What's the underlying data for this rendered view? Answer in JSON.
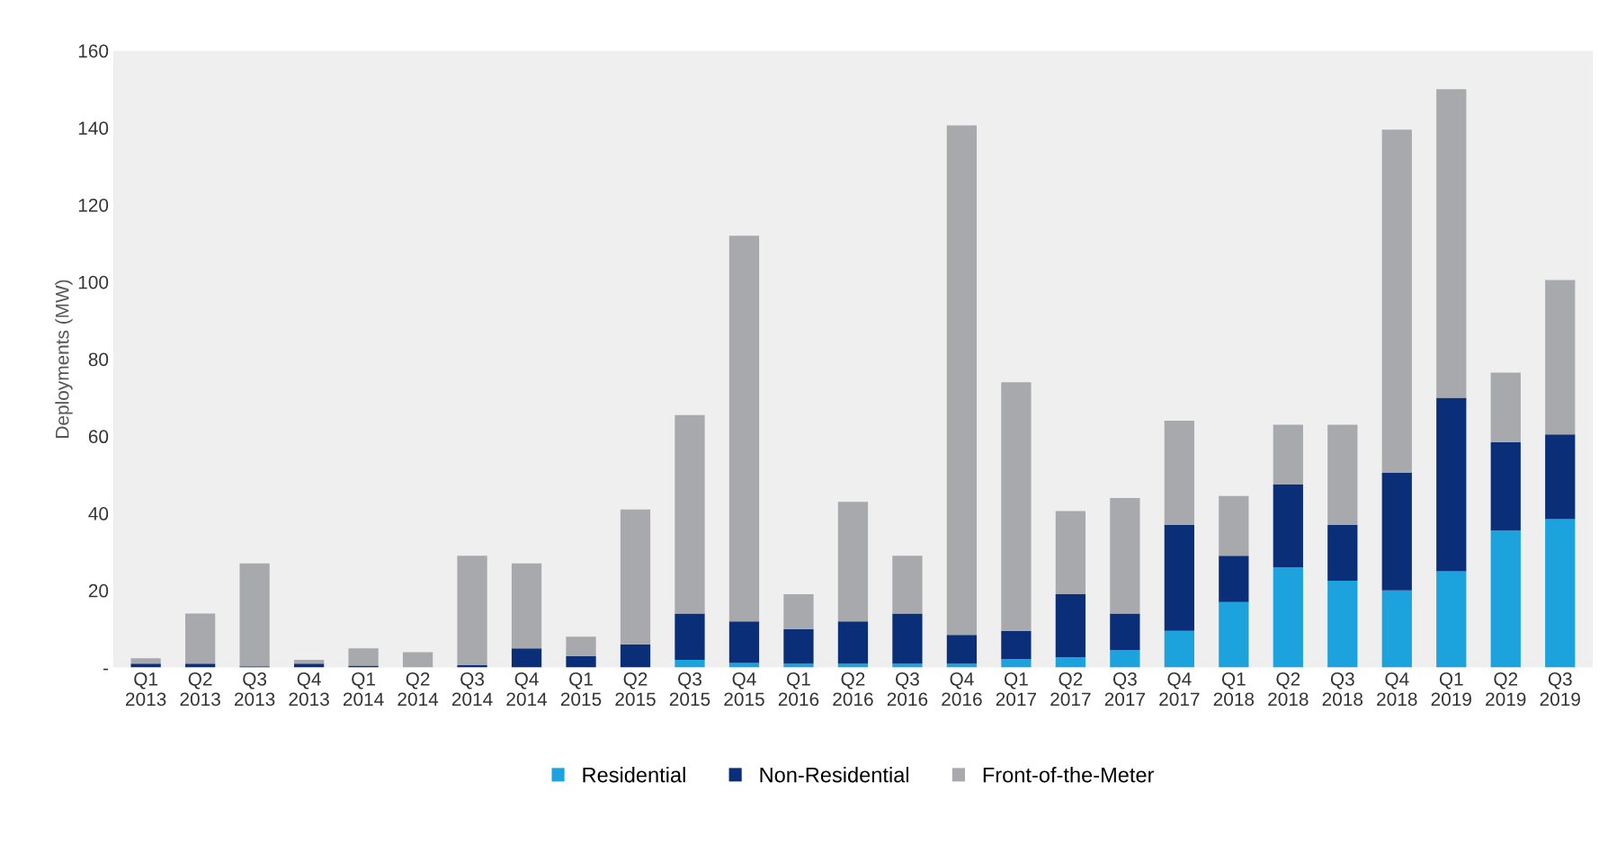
{
  "chart_data": {
    "type": "bar",
    "stacked": true,
    "ylabel": "Deployments (MW)",
    "categories": [
      "Q1\n2013",
      "Q2\n2013",
      "Q3\n2013",
      "Q4\n2013",
      "Q1\n2014",
      "Q2\n2014",
      "Q3\n2014",
      "Q4\n2014",
      "Q1\n2015",
      "Q2\n2015",
      "Q3\n2015",
      "Q4\n2015",
      "Q1\n2016",
      "Q2\n2016",
      "Q3\n2016",
      "Q4\n2016",
      "Q1\n2017",
      "Q2\n2017",
      "Q3\n2017",
      "Q4\n2017",
      "Q1\n2018",
      "Q2\n2018",
      "Q3\n2018",
      "Q4\n2018",
      "Q1\n2019",
      "Q2\n2019",
      "Q3\n2019"
    ],
    "series": [
      {
        "name": "Residential",
        "color": "#1ca2dc",
        "values": [
          0,
          0,
          0,
          0,
          0,
          0,
          0,
          0,
          0,
          0,
          2,
          1.2,
          1,
          1,
          1,
          1,
          2.2,
          2.7,
          4.5,
          9.5,
          17,
          26,
          22.5,
          20,
          25,
          35.5,
          38.5
        ]
      },
      {
        "name": "Non-Residential",
        "color": "#0a2f78",
        "values": [
          1,
          1,
          0.3,
          1,
          0.5,
          0,
          0.6,
          5,
          3,
          6,
          12,
          10.8,
          9,
          11,
          13,
          7.5,
          7.3,
          16.3,
          9.5,
          27.5,
          12,
          21.5,
          14.5,
          30.5,
          45,
          23,
          22
        ]
      },
      {
        "name": "Front-of-the-Meter",
        "color": "#a8a9ad",
        "values": [
          1.4,
          13,
          26.7,
          1,
          4.5,
          4,
          28.4,
          22,
          5,
          35,
          51.5,
          100,
          9,
          31,
          15,
          132.1,
          64.5,
          21.6,
          30,
          27,
          15.5,
          15.5,
          26,
          89,
          80,
          18,
          40
        ]
      }
    ],
    "ylim": [
      0,
      160
    ],
    "yticks": [
      {
        "value": 0,
        "label": "-"
      },
      20,
      40,
      60,
      80,
      100,
      120,
      140,
      160
    ],
    "grid": false,
    "legend": "bottom"
  }
}
